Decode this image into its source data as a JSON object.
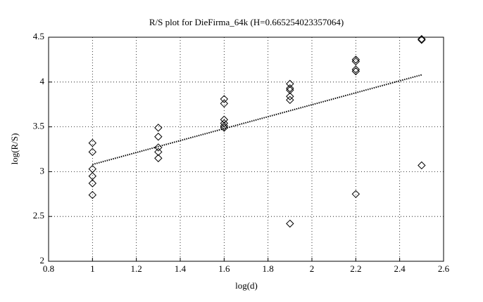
{
  "chart_data": {
    "type": "scatter",
    "title": "R/S plot for DieFirma_64k (H=0.665254023357064)",
    "xlabel": "log(d)",
    "ylabel": "log(R/S)",
    "xlim": [
      0.8,
      2.6
    ],
    "ylim": [
      2,
      4.5
    ],
    "xticks": [
      0.8,
      1,
      1.2,
      1.4,
      1.6,
      1.8,
      2,
      2.2,
      2.4,
      2.6
    ],
    "yticks": [
      2,
      2.5,
      3,
      3.5,
      4,
      4.5
    ],
    "grid": true,
    "series": [
      {
        "color": "#000000",
        "marker": "diamond",
        "x": [
          1,
          1,
          1,
          1,
          1,
          1,
          1.3,
          1.3,
          1.3,
          1.3,
          1.3,
          1.6,
          1.6,
          1.6,
          1.6,
          1.6,
          1.6,
          1.9,
          1.9,
          1.9,
          1.9,
          1.9,
          1.9,
          2.2,
          2.2,
          2.2,
          2.2,
          2.2,
          2.5,
          2.5,
          2.5
        ],
        "values": [
          3.32,
          3.22,
          3.03,
          2.95,
          2.87,
          2.74,
          3.49,
          3.39,
          3.27,
          3.22,
          3.15,
          3.81,
          3.76,
          3.58,
          3.54,
          3.51,
          3.49,
          3.98,
          3.93,
          3.91,
          3.84,
          3.8,
          2.42,
          4.25,
          4.23,
          4.14,
          4.12,
          2.75,
          4.48,
          4.47,
          3.07
        ]
      },
      {
        "color": "#000000",
        "line": "dotted",
        "x": [
          1,
          2.5
        ],
        "values": [
          3.08,
          4.08
        ]
      }
    ]
  }
}
